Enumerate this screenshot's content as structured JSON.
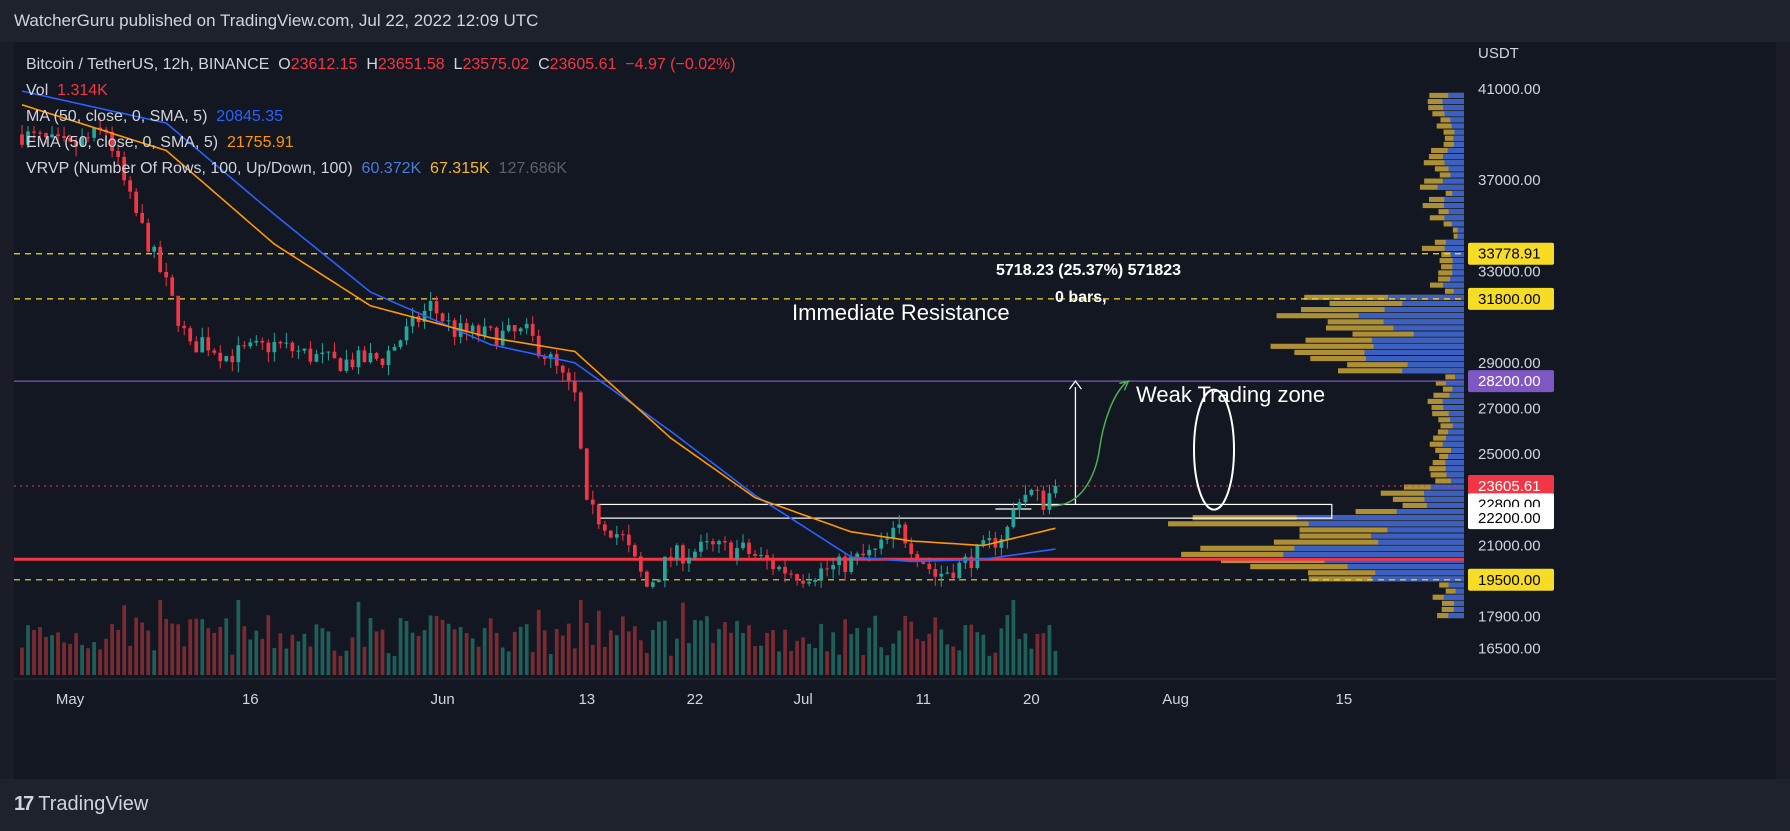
{
  "header": {
    "published": "WatcherGuru published on TradingView.com, Jul 22, 2022 12:09 UTC"
  },
  "footer": {
    "brand": "TradingView",
    "logo_glyph": "17"
  },
  "legend": {
    "symbol": "Bitcoin / TetherUS, 12h, BINANCE",
    "o_label": "O",
    "o_value": "23612.15",
    "h_label": "H",
    "h_value": "23651.58",
    "l_label": "L",
    "l_value": "23575.02",
    "c_label": "C",
    "c_value": "23605.61",
    "change": "−4.97 (−0.02%)",
    "vol_label": "Vol",
    "vol_value": "1.314K",
    "ma_label": "MA (50, close, 0, SMA, 5)",
    "ma_value": "20845.35",
    "ema_label": "EMA (50, close, 0, SMA, 5)",
    "ema_value": "21755.91",
    "vrvp_label": "VRVP (Number Of Rows, 100, Up/Down, 100)",
    "vrvp_up": "60.372K",
    "vrvp_down": "67.315K",
    "vrvp_total": "127.686K"
  },
  "annotations": {
    "measure_line1": "5718.23 (25.37%) 571823",
    "measure_line2": "0 bars,",
    "resistance": "Immediate Resistance",
    "weak_zone": "Weak Trading zone"
  },
  "colors": {
    "up": "#26a69a",
    "down": "#f23645",
    "ma": "#2962ff",
    "ema": "#ff9800",
    "vp_up": "#2f5bd1",
    "vp_down": "#c9a43a",
    "level": "#f7dc26",
    "purple": "#7e57c2",
    "support": "#f23645"
  },
  "chart_data": {
    "type": "candlestick",
    "title": "Bitcoin / TetherUS, 12h, BINANCE",
    "y_unit": "USDT",
    "y_ticks": [
      "41000.00",
      "37000.00",
      "33000.00",
      "29000.00",
      "27000.00",
      "25000.00",
      "21000.00",
      "17900.00",
      "16500.00"
    ],
    "x_ticks": [
      "May",
      "16",
      "Jun",
      "13",
      "22",
      "Jul",
      "11",
      "20",
      "Aug",
      "15"
    ],
    "x_range": [
      "2022-04-27",
      "2022-08-25"
    ],
    "y_range": [
      15900,
      42700
    ],
    "price_labels": [
      {
        "value": "33778.91",
        "y": 33778.91,
        "kind": "level"
      },
      {
        "value": "31800.00",
        "y": 31800,
        "kind": "level"
      },
      {
        "value": "28200.00",
        "y": 28200,
        "kind": "purple"
      },
      {
        "value": "23605.61",
        "y": 23605.61,
        "kind": "last"
      },
      {
        "value": "22800.00",
        "y": 22800,
        "kind": "white"
      },
      {
        "value": "22200.00",
        "y": 22200,
        "kind": "white"
      },
      {
        "value": "19500.00",
        "y": 19500,
        "kind": "level"
      }
    ],
    "horizontal_levels": [
      {
        "y": 33778.91,
        "style": "dashed",
        "color": "#f7dc26"
      },
      {
        "y": 31800,
        "style": "dashed",
        "color": "#f7dc26"
      },
      {
        "y": 28200,
        "style": "solid",
        "color": "#7e57c2"
      },
      {
        "y": 20400,
        "style": "solid-thick",
        "color": "#f23645"
      },
      {
        "y": 19500,
        "style": "dashed",
        "color": "#f7dc26"
      },
      {
        "y": 23605.61,
        "style": "dotted",
        "color": "#f23645"
      }
    ],
    "close_series": {
      "dates": [
        "2022-04-27",
        "2022-05-01",
        "2022-05-04",
        "2022-05-06",
        "2022-05-09",
        "2022-05-11",
        "2022-05-12",
        "2022-05-14",
        "2022-05-18",
        "2022-05-23",
        "2022-05-27",
        "2022-05-31",
        "2022-06-02",
        "2022-06-05",
        "2022-06-08",
        "2022-06-10",
        "2022-06-12",
        "2022-06-13",
        "2022-06-14",
        "2022-06-16",
        "2022-06-18",
        "2022-06-20",
        "2022-06-23",
        "2022-06-26",
        "2022-06-29",
        "2022-07-01",
        "2022-07-04",
        "2022-07-07",
        "2022-07-09",
        "2022-07-12",
        "2022-07-14",
        "2022-07-16",
        "2022-07-18",
        "2022-07-19",
        "2022-07-20",
        "2022-07-21",
        "2022-07-22"
      ],
      "values": [
        39000,
        38400,
        39200,
        36100,
        32400,
        29600,
        30000,
        29300,
        29800,
        29000,
        29200,
        31500,
        30400,
        30200,
        30300,
        29100,
        27500,
        22600,
        22200,
        21300,
        19200,
        20500,
        20900,
        20800,
        20000,
        19700,
        20100,
        20700,
        21700,
        19700,
        20100,
        20800,
        21700,
        23200,
        23300,
        22900,
        23605.61
      ]
    },
    "ma": {
      "name": "MA (50, close, 0, SMA, 5)",
      "last": 20845.35,
      "dates": [
        "2022-04-27",
        "2022-05-09",
        "2022-05-18",
        "2022-05-26",
        "2022-06-05",
        "2022-06-12",
        "2022-06-20",
        "2022-06-27",
        "2022-07-05",
        "2022-07-10",
        "2022-07-16",
        "2022-07-22"
      ],
      "values": [
        40900,
        39500,
        35500,
        32100,
        29800,
        29000,
        26000,
        23200,
        20500,
        20300,
        20400,
        20845.35
      ]
    },
    "ema": {
      "name": "EMA (50, close, 0, SMA, 5)",
      "last": 21755.91,
      "dates": [
        "2022-04-27",
        "2022-05-09",
        "2022-05-18",
        "2022-05-26",
        "2022-06-05",
        "2022-06-12",
        "2022-06-20",
        "2022-06-27",
        "2022-07-05",
        "2022-07-10",
        "2022-07-16",
        "2022-07-22"
      ],
      "values": [
        40300,
        38300,
        34200,
        31500,
        30100,
        29500,
        25700,
        23100,
        21600,
        21200,
        21000,
        21755.91
      ]
    },
    "grid": false,
    "legend_position": "top-left"
  }
}
